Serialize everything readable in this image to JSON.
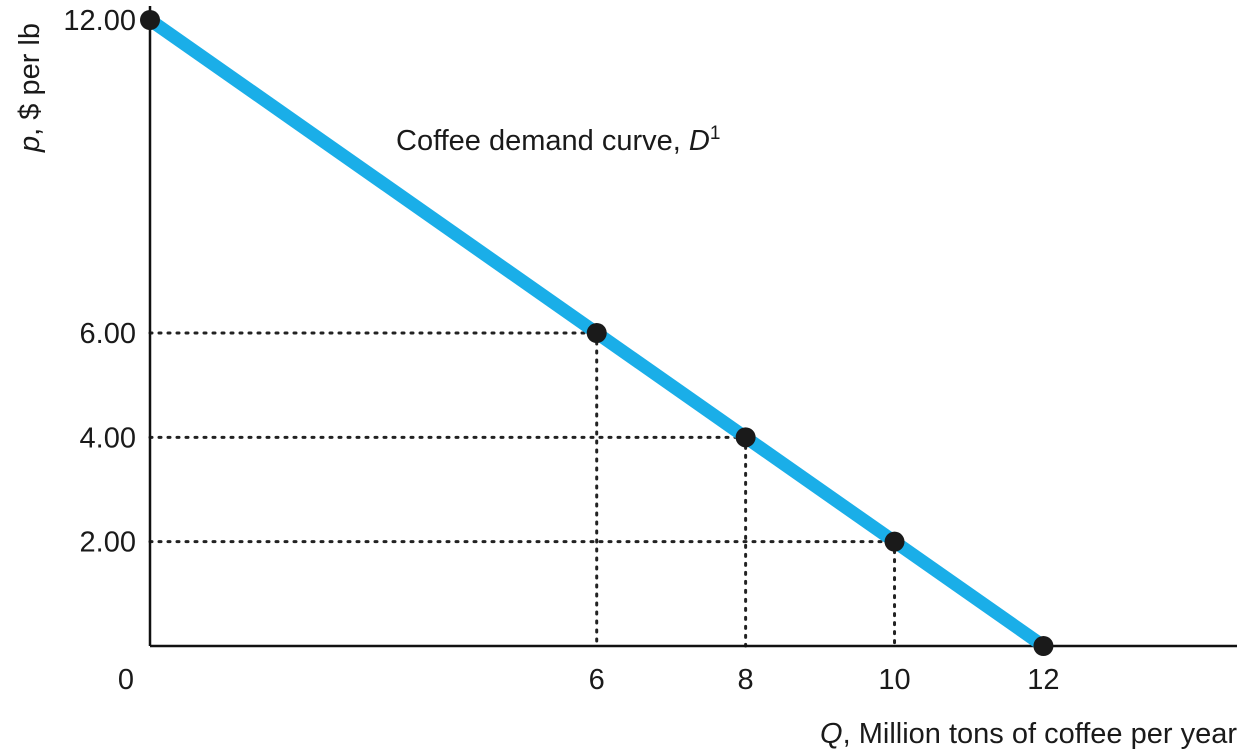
{
  "chart_data": {
    "type": "line",
    "xlabel": {
      "var": "Q",
      "rest": ", Million tons of coffee per year"
    },
    "ylabel": {
      "var": "p",
      "rest": ", $ per lb"
    },
    "xlim": [
      0,
      14.6
    ],
    "ylim": [
      0,
      12.0
    ],
    "x_ticks": [
      {
        "value": 0,
        "label": "0"
      },
      {
        "value": 6,
        "label": "6"
      },
      {
        "value": 8,
        "label": "8"
      },
      {
        "value": 10,
        "label": "10"
      },
      {
        "value": 12,
        "label": "12"
      }
    ],
    "y_ticks": [
      {
        "value": 2,
        "label": "2.00"
      },
      {
        "value": 4,
        "label": "4.00"
      },
      {
        "value": 6,
        "label": "6.00"
      },
      {
        "value": 12,
        "label": "12.00"
      }
    ],
    "series": [
      {
        "color": "#1aaee8",
        "x": [
          0,
          12
        ],
        "y": [
          12,
          0
        ],
        "points": [
          {
            "x": 0,
            "y": 12
          },
          {
            "x": 6,
            "y": 6
          },
          {
            "x": 8,
            "y": 4
          },
          {
            "x": 10,
            "y": 2
          },
          {
            "x": 12,
            "y": 0
          }
        ]
      }
    ],
    "guides": [
      {
        "x": 6,
        "y": 6
      },
      {
        "x": 8,
        "y": 4
      },
      {
        "x": 10,
        "y": 2
      }
    ],
    "annotation": {
      "text": "Coffee demand curve, ",
      "var": "D",
      "sup": "1"
    },
    "grid": false,
    "legend": "none"
  }
}
